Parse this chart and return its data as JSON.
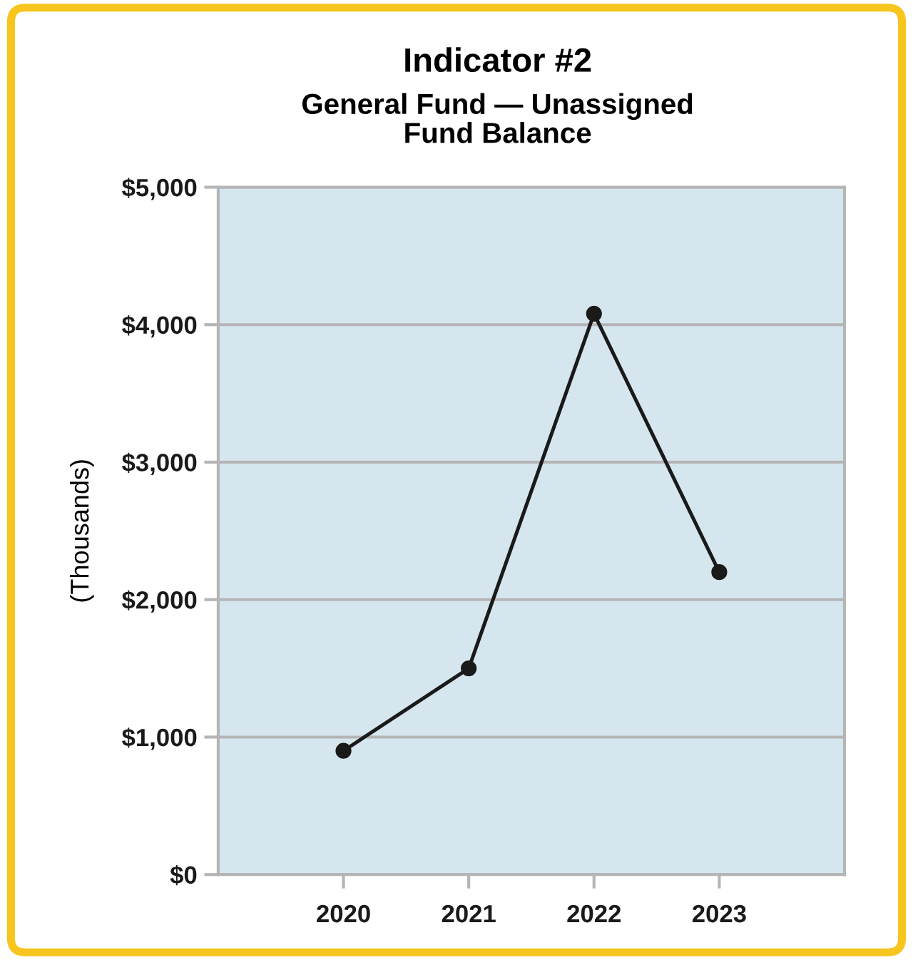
{
  "chart_data": {
    "type": "line",
    "title": "Indicator #2",
    "subtitle": "General Fund — Unassigned\nFund Balance",
    "ylabel": "(Thousands)",
    "categories": [
      "2020",
      "2021",
      "2022",
      "2023"
    ],
    "series": [
      {
        "color": "#1a1a1a",
        "values": [
          900,
          1500,
          4080,
          2200
        ]
      }
    ],
    "ylim": [
      0,
      5000
    ],
    "yticks": [
      {
        "value": 0,
        "label": "$0"
      },
      {
        "value": 1000,
        "label": "$1,000"
      },
      {
        "value": 2000,
        "label": "$2,000"
      },
      {
        "value": 3000,
        "label": "$3,000"
      },
      {
        "value": 4000,
        "label": "$4,000"
      },
      {
        "value": 5000,
        "label": "$5,000"
      }
    ],
    "grid": "y",
    "marker": "circle",
    "line_style": "solid",
    "legend": false
  }
}
